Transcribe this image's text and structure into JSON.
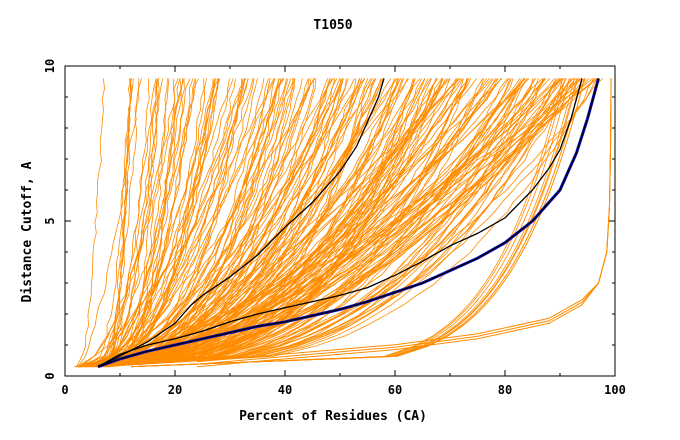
{
  "chart_data": {
    "type": "line",
    "title": "T1050",
    "xlabel": "Percent of Residues (CA)",
    "ylabel": "Distance Cutoff, A",
    "xlim": [
      0,
      100
    ],
    "ylim": [
      0,
      10
    ],
    "y_clip": 9.6,
    "x_ticks": [
      0,
      20,
      40,
      60,
      80,
      100
    ],
    "x_tick_labels": [
      "0",
      "20",
      "40",
      "60",
      "80",
      "100"
    ],
    "y_ticks": [
      0,
      5,
      10
    ],
    "y_tick_labels": [
      "0",
      "5",
      "10"
    ],
    "grid": false,
    "colors": {
      "bundle": "#ff8c00",
      "highlight_black": "#000000",
      "highlight_blue": "#1010c0",
      "axis": "#000000"
    },
    "series": [
      {
        "values_x": [
          6,
          10,
          15,
          20,
          25,
          30,
          35,
          40,
          45,
          50,
          55,
          60,
          65,
          70,
          75,
          80,
          85,
          90,
          93,
          95,
          97
        ],
        "values_y": [
          0.3,
          0.55,
          0.8,
          1.0,
          1.2,
          1.4,
          1.6,
          1.75,
          1.95,
          2.15,
          2.4,
          2.7,
          3.0,
          3.4,
          3.8,
          4.3,
          5.0,
          6.0,
          7.2,
          8.3,
          9.6
        ],
        "color": "#1010c0"
      },
      {
        "values_x": [
          6,
          10,
          15,
          20,
          25,
          30,
          35,
          40,
          45,
          50,
          55,
          60,
          65,
          70,
          75,
          80,
          85,
          90,
          93,
          95,
          97
        ],
        "values_y": [
          0.3,
          0.55,
          0.8,
          1.0,
          1.2,
          1.4,
          1.6,
          1.75,
          1.95,
          2.15,
          2.4,
          2.7,
          3.0,
          3.4,
          3.8,
          4.3,
          5.0,
          6.0,
          7.2,
          8.3,
          9.6
        ],
        "color": "#000000"
      },
      {
        "values_x": [
          6,
          10,
          15,
          20,
          25,
          30,
          35,
          40,
          45,
          50,
          55,
          60,
          65,
          70,
          75,
          80,
          85,
          88,
          90,
          92,
          94
        ],
        "values_y": [
          0.3,
          0.7,
          1.0,
          1.2,
          1.45,
          1.75,
          2.0,
          2.2,
          2.4,
          2.6,
          2.85,
          3.25,
          3.7,
          4.2,
          4.6,
          5.1,
          6.0,
          6.7,
          7.3,
          8.3,
          9.6
        ],
        "color": "#000000"
      },
      {
        "values_x": [
          6,
          10,
          15,
          20,
          23,
          25,
          30,
          35,
          40,
          45,
          50,
          53,
          55,
          57,
          58
        ],
        "values_y": [
          0.3,
          0.65,
          1.1,
          1.7,
          2.3,
          2.6,
          3.2,
          3.9,
          4.8,
          5.6,
          6.6,
          7.4,
          8.2,
          9.0,
          9.6
        ],
        "color": "#000000"
      }
    ]
  }
}
